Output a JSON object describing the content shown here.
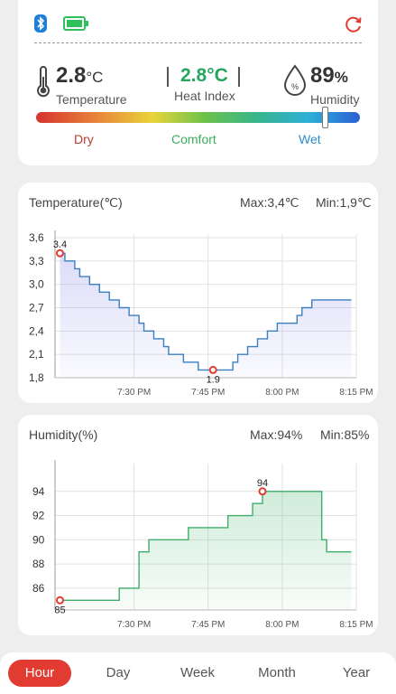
{
  "status": {
    "bluetooth_icon": "bluetooth-icon",
    "battery_icon": "battery-full-icon",
    "refresh_icon": "refresh-icon"
  },
  "readings": {
    "temperature": {
      "value": "2.8",
      "unit": "°C",
      "label": "Temperature"
    },
    "heat_index": {
      "value": "2.8°C",
      "label": "Heat Index"
    },
    "humidity": {
      "value": "89",
      "unit": "%",
      "label": "Humidity"
    }
  },
  "comfort_scale": {
    "dry": "Dry",
    "comfort": "Comfort",
    "wet": "Wet",
    "indicator_fraction": 0.89
  },
  "colors": {
    "accent": "#e23b32",
    "temp_line": "#3a7fc1",
    "hum_line": "#3fae6a",
    "comfort_text": "#3aae5e",
    "wet_text": "#2b8fce",
    "dry_text": "#c0392b"
  },
  "temperature_chart": {
    "title": "Temperature(℃)",
    "max": "Max:3,4℃",
    "min": "Min:1,9℃"
  },
  "humidity_chart": {
    "title": "Humidity(%)",
    "max": "Max:94%",
    "min": "Min:85%"
  },
  "tabs": [
    "Hour",
    "Day",
    "Week",
    "Month",
    "Year"
  ],
  "chart_data": [
    {
      "type": "line",
      "title": "Temperature(℃)",
      "x_ticks": [
        "7:30 PM",
        "7:45 PM",
        "8:00 PM",
        "8:15 PM"
      ],
      "x_range_minutes": [
        -1,
        60
      ],
      "y_ticks": [
        "1,8",
        "2,1",
        "2,4",
        "2,7",
        "3,0",
        "3,3",
        "3,6"
      ],
      "ylim": [
        1.8,
        3.6
      ],
      "points": [
        [
          0,
          3.4
        ],
        [
          1,
          3.3
        ],
        [
          2,
          3.3
        ],
        [
          3,
          3.2
        ],
        [
          4,
          3.1
        ],
        [
          5,
          3.1
        ],
        [
          6,
          3.0
        ],
        [
          7,
          3.0
        ],
        [
          8,
          2.9
        ],
        [
          9,
          2.9
        ],
        [
          10,
          2.8
        ],
        [
          11,
          2.8
        ],
        [
          12,
          2.7
        ],
        [
          13,
          2.7
        ],
        [
          14,
          2.6
        ],
        [
          15,
          2.6
        ],
        [
          16,
          2.5
        ],
        [
          17,
          2.4
        ],
        [
          18,
          2.4
        ],
        [
          19,
          2.3
        ],
        [
          20,
          2.3
        ],
        [
          21,
          2.2
        ],
        [
          22,
          2.1
        ],
        [
          23,
          2.1
        ],
        [
          24,
          2.1
        ],
        [
          25,
          2.0
        ],
        [
          26,
          2.0
        ],
        [
          27,
          2.0
        ],
        [
          28,
          1.9
        ],
        [
          29,
          1.9
        ],
        [
          30,
          1.9
        ],
        [
          31,
          1.9
        ],
        [
          32,
          1.9
        ],
        [
          33,
          1.9
        ],
        [
          34,
          1.9
        ],
        [
          35,
          2.0
        ],
        [
          36,
          2.1
        ],
        [
          37,
          2.1
        ],
        [
          38,
          2.2
        ],
        [
          39,
          2.2
        ],
        [
          40,
          2.3
        ],
        [
          41,
          2.3
        ],
        [
          42,
          2.4
        ],
        [
          43,
          2.4
        ],
        [
          44,
          2.5
        ],
        [
          45,
          2.5
        ],
        [
          46,
          2.5
        ],
        [
          47,
          2.5
        ],
        [
          48,
          2.6
        ],
        [
          49,
          2.7
        ],
        [
          50,
          2.7
        ],
        [
          51,
          2.8
        ],
        [
          52,
          2.8
        ],
        [
          53,
          2.8
        ],
        [
          54,
          2.8
        ],
        [
          55,
          2.8
        ],
        [
          56,
          2.8
        ],
        [
          57,
          2.8
        ],
        [
          58,
          2.8
        ],
        [
          59,
          2.8
        ]
      ],
      "annotations": [
        {
          "x": 0,
          "y": 3.4,
          "label": "3.4"
        },
        {
          "x": 31,
          "y": 1.9,
          "label": "1.9"
        }
      ]
    },
    {
      "type": "line",
      "title": "Humidity(%)",
      "x_ticks": [
        "7:30 PM",
        "7:45 PM",
        "8:00 PM",
        "8:15 PM"
      ],
      "x_range_minutes": [
        -1,
        60
      ],
      "y_ticks": [
        "86",
        "88",
        "90",
        "92",
        "94"
      ],
      "ylim": [
        84.2,
        96
      ],
      "points": [
        [
          0,
          85
        ],
        [
          3,
          85
        ],
        [
          6,
          85
        ],
        [
          11,
          85
        ],
        [
          12,
          86
        ],
        [
          15,
          86
        ],
        [
          16,
          89
        ],
        [
          17,
          89
        ],
        [
          18,
          90
        ],
        [
          20,
          90
        ],
        [
          25,
          90
        ],
        [
          26,
          91
        ],
        [
          33,
          91
        ],
        [
          34,
          92
        ],
        [
          38,
          92
        ],
        [
          39,
          93
        ],
        [
          40,
          93
        ],
        [
          41,
          94
        ],
        [
          48,
          94
        ],
        [
          52,
          94
        ],
        [
          53,
          90
        ],
        [
          54,
          89
        ],
        [
          59,
          89
        ]
      ],
      "annotations": [
        {
          "x": 41,
          "y": 94,
          "label": "94"
        },
        {
          "x": 0,
          "y": 85,
          "label": "85"
        }
      ]
    }
  ]
}
